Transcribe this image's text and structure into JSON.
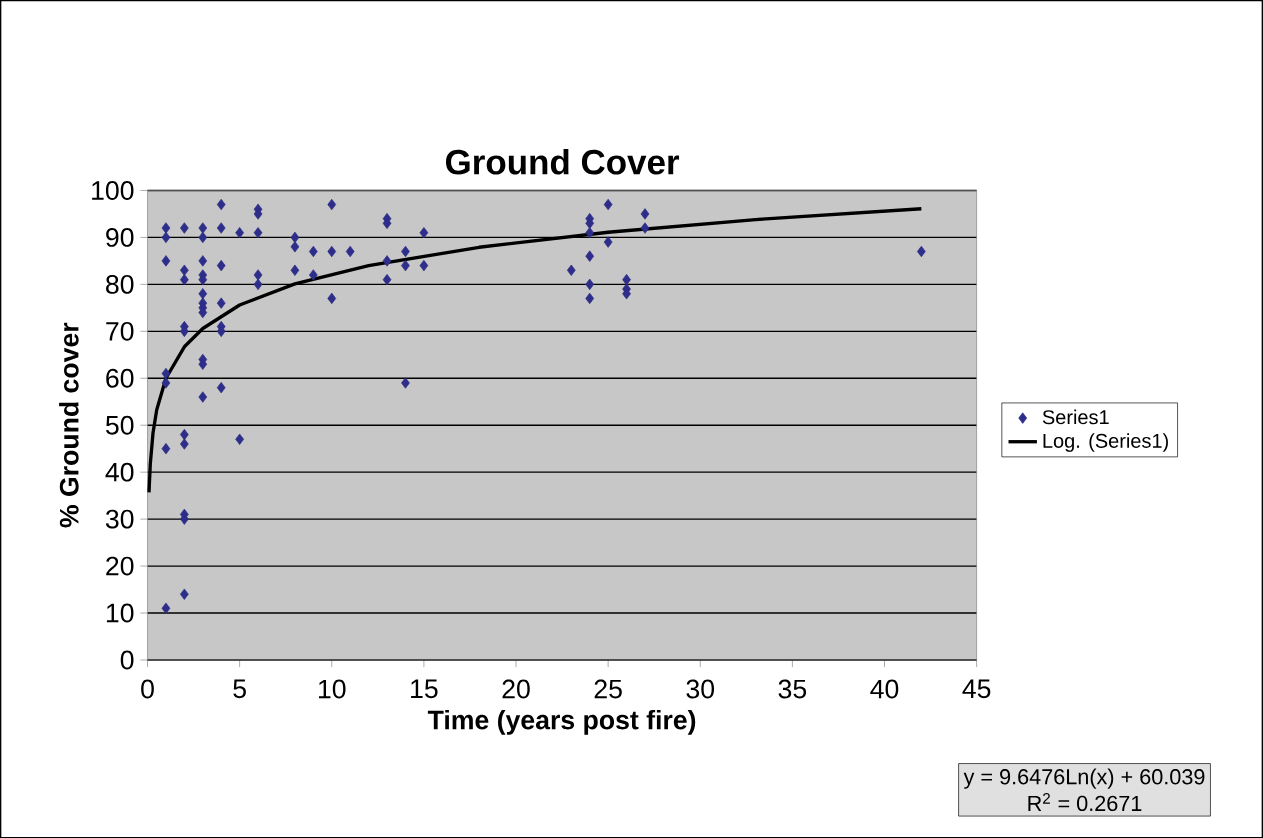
{
  "chart_data": {
    "type": "scatter",
    "title": "Ground Cover",
    "xlabel": "Time (years post fire)",
    "ylabel": "% Ground cover",
    "xlim": [
      0,
      45
    ],
    "xticks": [
      0,
      5,
      10,
      15,
      20,
      25,
      30,
      35,
      40,
      45
    ],
    "ylim": [
      0,
      100
    ],
    "yticks": [
      0,
      10,
      20,
      30,
      40,
      50,
      60,
      70,
      80,
      90,
      100
    ],
    "grid": "y",
    "legend": "right",
    "series": [
      {
        "name": "Series1",
        "marker": "diamond",
        "color": "#2e2e8a",
        "x": [
          1,
          1,
          1,
          1,
          1,
          1,
          1,
          2,
          2,
          2,
          2,
          2,
          2,
          2,
          2,
          2,
          2,
          3,
          3,
          3,
          3,
          3,
          3,
          3,
          3,
          3,
          3,
          3,
          3,
          4,
          4,
          4,
          4,
          4,
          4,
          4,
          5,
          5,
          6,
          6,
          6,
          6,
          6,
          8,
          8,
          8,
          9,
          9,
          10,
          10,
          10,
          11,
          13,
          13,
          13,
          13,
          14,
          14,
          14,
          15,
          15,
          23,
          24,
          24,
          24,
          24,
          24,
          24,
          25,
          25,
          26,
          26,
          26,
          27,
          27,
          42
        ],
        "values": [
          92,
          90,
          85,
          61,
          59,
          45,
          11,
          92,
          83,
          81,
          71,
          70,
          48,
          46,
          31,
          30,
          14,
          92,
          90,
          85,
          82,
          81,
          78,
          76,
          75,
          74,
          64,
          63,
          56,
          97,
          92,
          84,
          76,
          71,
          70,
          58,
          91,
          47,
          96,
          95,
          91,
          82,
          80,
          90,
          88,
          83,
          87,
          82,
          97,
          87,
          77,
          87,
          94,
          93,
          85,
          81,
          87,
          84,
          59,
          91,
          84,
          83,
          94,
          93,
          91,
          86,
          80,
          77,
          97,
          89,
          81,
          79,
          78,
          95,
          92,
          87
        ]
      },
      {
        "name": "Log. (Series1)",
        "type": "line",
        "marker": "none",
        "line_style": "solid",
        "color": "#000000",
        "x": [
          0.08,
          0.15,
          0.3,
          0.5,
          1,
          2,
          3,
          5,
          8,
          12,
          18,
          25,
          33,
          42
        ],
        "values": [
          35.7,
          41.7,
          48.4,
          53.3,
          60.0,
          66.7,
          70.6,
          75.6,
          80.1,
          84.0,
          87.9,
          91.1,
          93.8,
          96.1
        ]
      }
    ],
    "annotations": [
      "y = 9.6476Ln(x) + 60.039",
      "R$^{2}$ = 0.2671"
    ]
  }
}
